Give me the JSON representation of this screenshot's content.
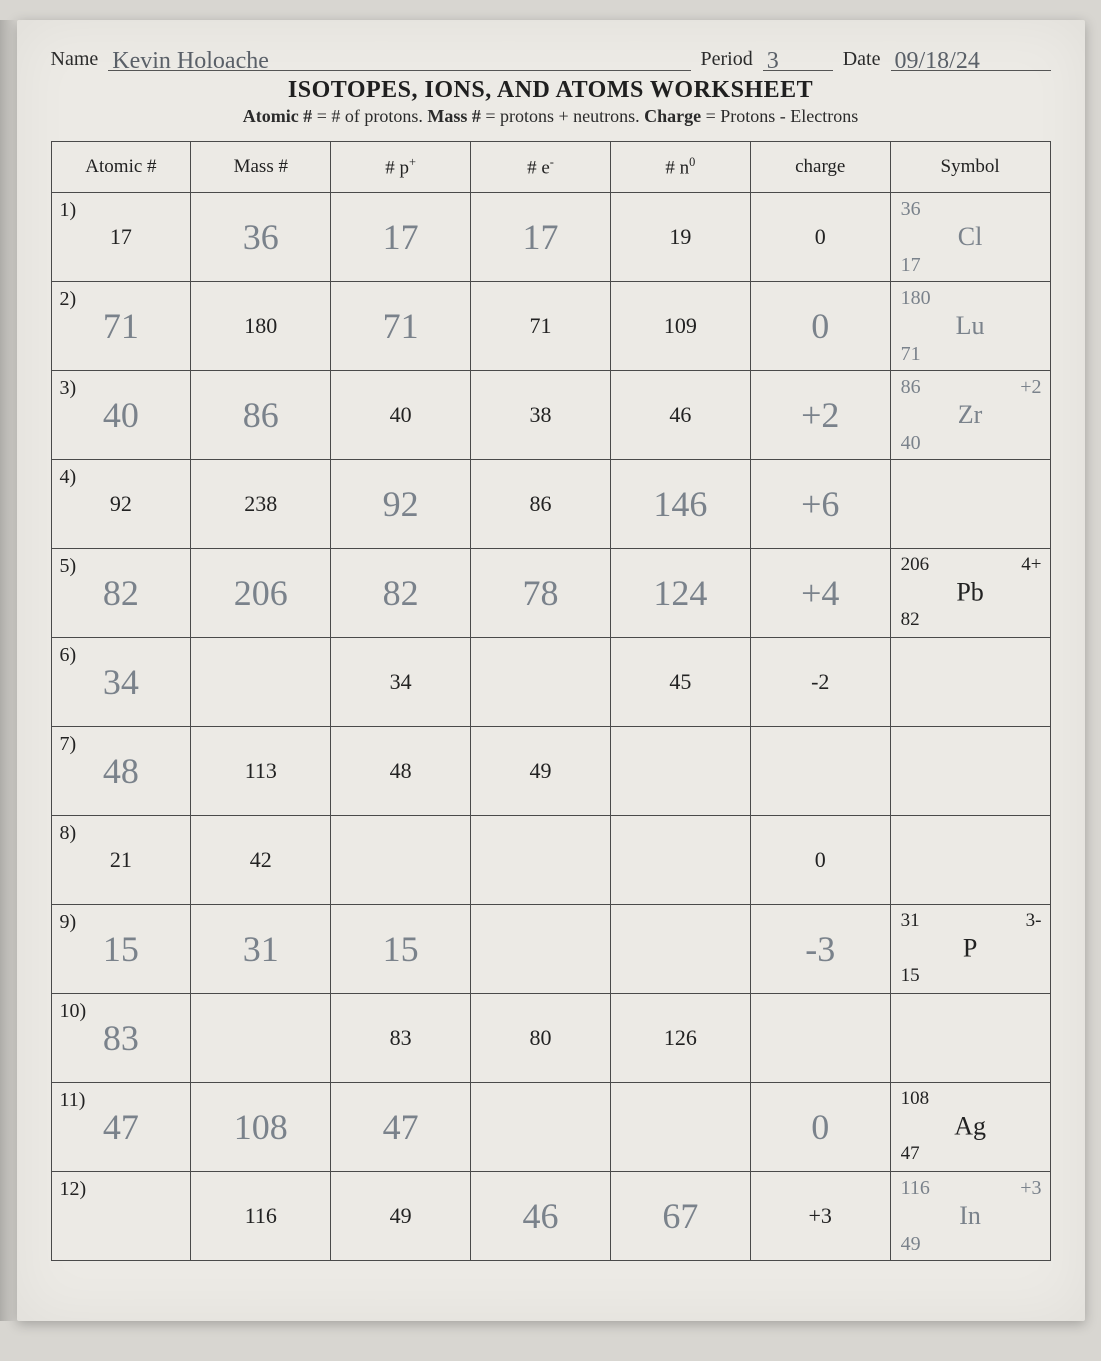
{
  "header": {
    "name_label": "Name",
    "period_label": "Period",
    "date_label": "Date",
    "name_value": "Kevin  Holoache",
    "period_value": "3",
    "date_value": "09/18/24"
  },
  "title": "ISOTOPES, IONS, AND ATOMS WORKSHEET",
  "subtitle_parts": {
    "a1": "Atomic #",
    "a2": " = # of protons. ",
    "b1": "Mass #",
    "b2": " = protons + neutrons. ",
    "c1": "Charge",
    "c2": " = Protons - Electrons"
  },
  "columns": {
    "atomic": "Atomic #",
    "mass": "Mass #",
    "p": "# p",
    "e": "# e",
    "n": "# n",
    "charge": "charge",
    "symbol": "Symbol"
  },
  "rows": [
    {
      "num": "1)",
      "atomic": {
        "printed": "17"
      },
      "mass": {
        "hand": "36"
      },
      "p": {
        "hand": "17"
      },
      "e": {
        "hand": "17"
      },
      "n": {
        "printed": "19"
      },
      "charge": {
        "printed": "0"
      },
      "symbol": {
        "hand_mass": "36",
        "hand_atomic": "17",
        "hand_el": "Cl"
      }
    },
    {
      "num": "2)",
      "atomic": {
        "hand": "71"
      },
      "mass": {
        "printed": "180"
      },
      "p": {
        "hand": "71"
      },
      "e": {
        "printed": "71"
      },
      "n": {
        "printed": "109"
      },
      "charge": {
        "hand": "0"
      },
      "symbol": {
        "hand_mass": "180",
        "hand_atomic": "71",
        "hand_el": "Lu"
      }
    },
    {
      "num": "3)",
      "atomic": {
        "hand": "40"
      },
      "mass": {
        "hand": "86"
      },
      "p": {
        "printed": "40"
      },
      "e": {
        "printed": "38"
      },
      "n": {
        "printed": "46"
      },
      "charge": {
        "hand": "+2"
      },
      "symbol": {
        "hand_mass": "86",
        "hand_atomic": "40",
        "hand_el": "Zr",
        "hand_charge": "+2"
      }
    },
    {
      "num": "4)",
      "atomic": {
        "printed": "92"
      },
      "mass": {
        "printed": "238"
      },
      "p": {
        "hand": "92"
      },
      "e": {
        "printed": "86"
      },
      "n": {
        "hand": "146"
      },
      "charge": {
        "hand": "+6"
      },
      "symbol": {}
    },
    {
      "num": "5)",
      "atomic": {
        "hand": "82"
      },
      "mass": {
        "hand": "206"
      },
      "p": {
        "hand": "82"
      },
      "e": {
        "hand": "78"
      },
      "n": {
        "hand": "124"
      },
      "charge": {
        "hand": "+4"
      },
      "symbol": {
        "printed_mass": "206",
        "printed_atomic": "82",
        "printed_el": "Pb",
        "printed_charge": "4+"
      }
    },
    {
      "num": "6)",
      "atomic": {
        "hand": "34"
      },
      "mass": {},
      "p": {
        "printed": "34"
      },
      "e": {},
      "n": {
        "printed": "45"
      },
      "charge": {
        "printed": "-2"
      },
      "symbol": {}
    },
    {
      "num": "7)",
      "atomic": {
        "hand": "48"
      },
      "mass": {
        "printed": "113"
      },
      "p": {
        "printed": "48"
      },
      "e": {
        "printed": "49"
      },
      "n": {},
      "charge": {},
      "symbol": {}
    },
    {
      "num": "8)",
      "atomic": {
        "printed": "21"
      },
      "mass": {
        "printed": "42"
      },
      "p": {},
      "e": {},
      "n": {},
      "charge": {
        "printed": "0"
      },
      "symbol": {}
    },
    {
      "num": "9)",
      "atomic": {
        "hand": "15"
      },
      "mass": {
        "hand": "31"
      },
      "p": {
        "hand": "15"
      },
      "e": {},
      "n": {},
      "charge": {
        "hand": "-3"
      },
      "symbol": {
        "printed_mass": "31",
        "printed_atomic": "15",
        "printed_el": "P",
        "printed_charge": "3-"
      }
    },
    {
      "num": "10)",
      "atomic": {
        "hand": "83"
      },
      "mass": {},
      "p": {
        "printed": "83"
      },
      "e": {
        "printed": "80"
      },
      "n": {
        "printed": "126"
      },
      "charge": {},
      "symbol": {}
    },
    {
      "num": "11)",
      "atomic": {
        "hand": "47"
      },
      "mass": {
        "hand": "108"
      },
      "p": {
        "hand": "47"
      },
      "e": {},
      "n": {},
      "charge": {
        "hand": "0"
      },
      "symbol": {
        "printed_mass": "108",
        "printed_atomic": "47",
        "printed_el": "Ag"
      }
    },
    {
      "num": "12)",
      "atomic": {},
      "mass": {
        "printed": "116"
      },
      "p": {
        "printed": "49"
      },
      "e": {
        "hand": "46"
      },
      "n": {
        "hand": "67"
      },
      "charge": {
        "printed": "+3"
      },
      "symbol": {
        "hand_mass": "116",
        "hand_atomic": "49",
        "hand_el": "In",
        "hand_charge": "+3"
      }
    }
  ]
}
